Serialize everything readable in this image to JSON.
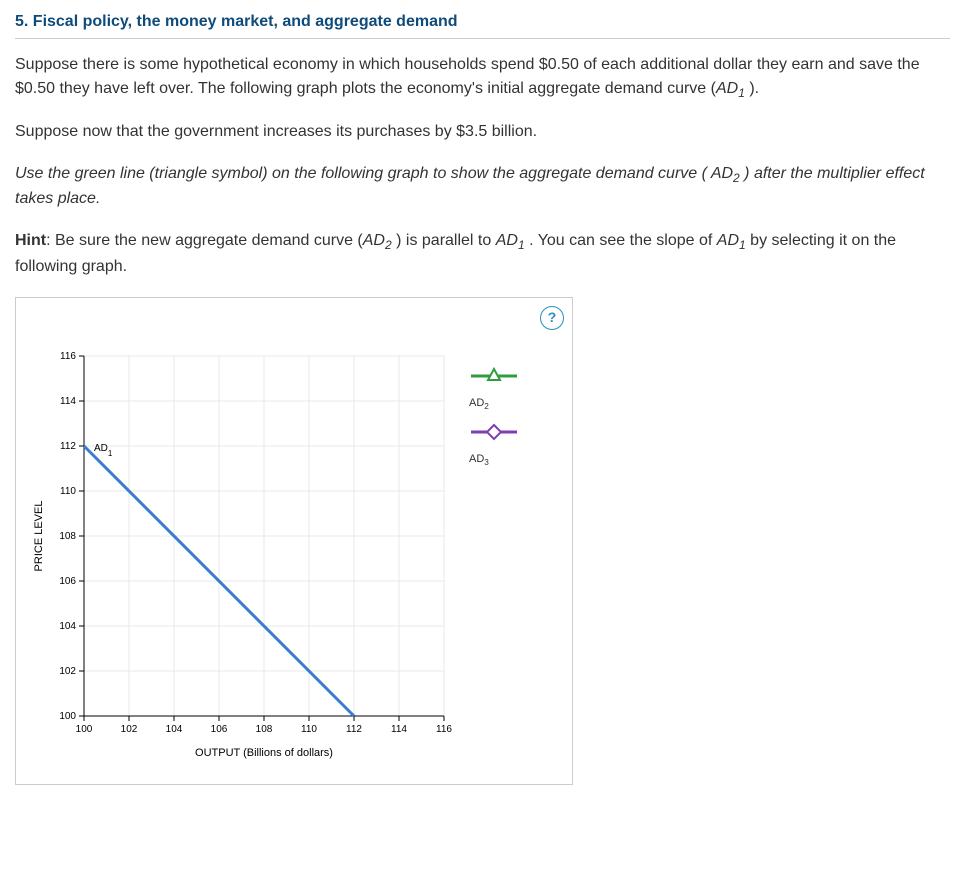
{
  "title": "5. Fiscal policy, the money market, and aggregate demand",
  "para1a": "Suppose there is some hypothetical economy in which households spend $0.50 of each additional dollar they earn and save the $0.50 they have left over. The following graph plots the economy's initial aggregate demand curve (",
  "para1b": "AD",
  "para1b_sub": "1",
  "para1c": " ).",
  "para2": "Suppose now that the government increases its purchases by $3.5 billion.",
  "para3a": "Use the green line (triangle symbol) on the following graph to show the aggregate demand curve ( ",
  "para3b": "AD",
  "para3b_sub": "2",
  "para3c": " ) after the multiplier effect takes place.",
  "hint_label": "Hint",
  "hint_a": ": Be sure the new aggregate demand curve (",
  "hint_b": "AD",
  "hint_b_sub": "2",
  "hint_c": " ) is parallel to ",
  "hint_d": "AD",
  "hint_d_sub": "1",
  "hint_e": " . You can see the slope of ",
  "hint_f": "AD",
  "hint_f_sub": "1",
  "hint_g": "   by selecting it on the following graph.",
  "help_icon": "?",
  "chart": {
    "type": "line",
    "y_label": "PRICE LEVEL",
    "x_label": "OUTPUT (Billions of dollars)",
    "x_ticks": [
      100,
      102,
      104,
      106,
      108,
      110,
      112,
      114,
      116
    ],
    "y_ticks": [
      100,
      102,
      104,
      106,
      108,
      110,
      112,
      114,
      116
    ],
    "xlim": [
      100,
      116
    ],
    "ylim": [
      100,
      116
    ],
    "grid_color": "#e8e8e8",
    "background_color": "#ffffff",
    "series": [
      {
        "name": "AD1",
        "label": "AD",
        "label_sub": "1",
        "color": "#3a7bd5",
        "width": 3,
        "points": [
          [
            100,
            112
          ],
          [
            112,
            100
          ]
        ]
      }
    ],
    "legend_items": [
      {
        "key": "ad2",
        "label": "AD",
        "label_sub": "2",
        "color": "#2e9e3f",
        "marker": "triangle"
      },
      {
        "key": "ad3",
        "label": "AD",
        "label_sub": "3",
        "color": "#7a3fb5",
        "marker": "diamond"
      }
    ],
    "tick_fontsize": 10,
    "label_fontsize": 11,
    "axis_color": "#000000"
  }
}
